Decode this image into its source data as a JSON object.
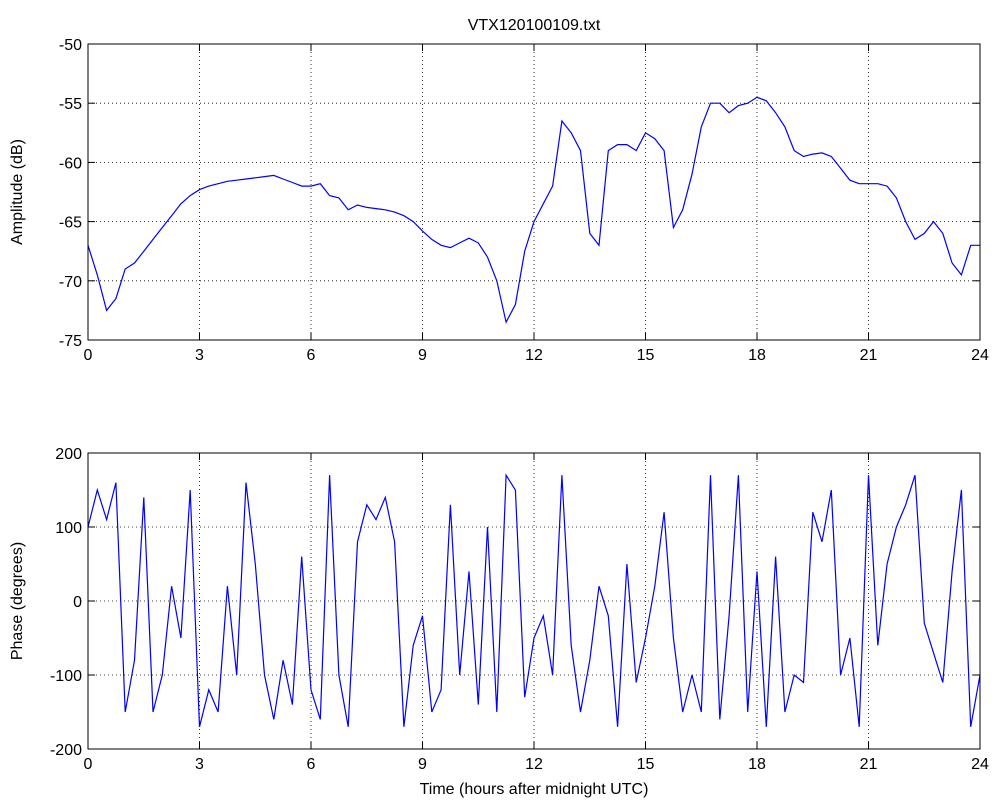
{
  "chart_data": [
    {
      "type": "line",
      "title": "VTX120100109.txt",
      "ylabel": "Amplitude (dB)",
      "color": "#0000ff",
      "grid": true,
      "xlim": [
        0,
        24
      ],
      "xticks": [
        0,
        3,
        6,
        9,
        12,
        15,
        18,
        21,
        24
      ],
      "ylim": [
        -75,
        -50
      ],
      "yticks": [
        -75,
        -70,
        -65,
        -60,
        -55,
        -50
      ],
      "x": [
        0,
        0.25,
        0.5,
        0.75,
        1,
        1.25,
        1.5,
        1.75,
        2,
        2.25,
        2.5,
        2.75,
        3,
        3.25,
        3.5,
        3.75,
        4,
        4.25,
        4.5,
        4.75,
        5,
        5.25,
        5.5,
        5.75,
        6,
        6.25,
        6.5,
        6.75,
        7,
        7.25,
        7.5,
        7.75,
        8,
        8.25,
        8.5,
        8.75,
        9,
        9.25,
        9.5,
        9.75,
        10,
        10.25,
        10.5,
        10.75,
        11,
        11.25,
        11.5,
        11.75,
        12,
        12.25,
        12.5,
        12.75,
        13,
        13.25,
        13.5,
        13.75,
        14,
        14.25,
        14.5,
        14.75,
        15,
        15.25,
        15.5,
        15.75,
        16,
        16.25,
        16.5,
        16.75,
        17,
        17.25,
        17.5,
        17.75,
        18,
        18.25,
        18.5,
        18.75,
        19,
        19.25,
        19.5,
        19.75,
        20,
        20.25,
        20.5,
        20.75,
        21,
        21.25,
        21.5,
        21.75,
        22,
        22.25,
        22.5,
        22.75,
        23,
        23.25,
        23.5,
        23.75,
        24
      ],
      "values": [
        -67,
        -69.5,
        -72.5,
        -71.5,
        -69,
        -68.5,
        -67.5,
        -66.5,
        -65.5,
        -64.5,
        -63.5,
        -62.8,
        -62.3,
        -62,
        -61.8,
        -61.6,
        -61.5,
        -61.4,
        -61.3,
        -61.2,
        -61.1,
        -61.4,
        -61.7,
        -62,
        -62,
        -61.8,
        -62.8,
        -63,
        -64,
        -63.6,
        -63.8,
        -63.9,
        -64,
        -64.2,
        -64.5,
        -65,
        -65.8,
        -66.5,
        -67,
        -67.2,
        -66.8,
        -66.4,
        -66.8,
        -68,
        -70,
        -73.5,
        -72,
        -67.5,
        -65,
        -63.5,
        -62,
        -56.5,
        -57.5,
        -59,
        -66,
        -67,
        -59,
        -58.5,
        -58.5,
        -59,
        -57.5,
        -58,
        -59,
        -65.5,
        -64,
        -61,
        -57,
        -55,
        -55,
        -55.8,
        -55.2,
        -55,
        -54.5,
        -54.8,
        -55.8,
        -57,
        -59,
        -59.5,
        -59.3,
        -59.2,
        -59.5,
        -60.5,
        -61.5,
        -61.8,
        -61.8,
        -61.8,
        -62,
        -63,
        -65,
        -66.5,
        -66,
        -65,
        -66,
        -68.5,
        -69.5,
        -67,
        -67
      ]
    },
    {
      "type": "line",
      "xlabel": "Time (hours after midnight UTC)",
      "ylabel": "Phase (degrees)",
      "color": "#0000ff",
      "grid": true,
      "xlim": [
        0,
        24
      ],
      "xticks": [
        0,
        3,
        6,
        9,
        12,
        15,
        18,
        21,
        24
      ],
      "ylim": [
        -200,
        200
      ],
      "yticks": [
        -200,
        -100,
        0,
        100,
        200
      ],
      "x": [
        0,
        0.25,
        0.5,
        0.75,
        1,
        1.25,
        1.5,
        1.75,
        2,
        2.25,
        2.5,
        2.75,
        3,
        3.25,
        3.5,
        3.75,
        4,
        4.25,
        4.5,
        4.75,
        5,
        5.25,
        5.5,
        5.75,
        6,
        6.25,
        6.5,
        6.75,
        7,
        7.25,
        7.5,
        7.75,
        8,
        8.25,
        8.5,
        8.75,
        9,
        9.25,
        9.5,
        9.75,
        10,
        10.25,
        10.5,
        10.75,
        11,
        11.25,
        11.5,
        11.75,
        12,
        12.25,
        12.5,
        12.75,
        13,
        13.25,
        13.5,
        13.75,
        14,
        14.25,
        14.5,
        14.75,
        15,
        15.25,
        15.5,
        15.75,
        16,
        16.25,
        16.5,
        16.75,
        17,
        17.25,
        17.5,
        17.75,
        18,
        18.25,
        18.5,
        18.75,
        19,
        19.25,
        19.5,
        19.75,
        20,
        20.25,
        20.5,
        20.75,
        21,
        21.25,
        21.5,
        21.75,
        22,
        22.25,
        22.5,
        22.75,
        23,
        23.25,
        23.5,
        23.75,
        24
      ],
      "values": [
        100,
        150,
        110,
        160,
        -150,
        -80,
        140,
        -150,
        -100,
        20,
        -50,
        150,
        -170,
        -120,
        -150,
        20,
        -100,
        160,
        50,
        -100,
        -160,
        -80,
        -140,
        60,
        -120,
        -160,
        170,
        -100,
        -170,
        80,
        130,
        110,
        140,
        80,
        -170,
        -60,
        -20,
        -150,
        -120,
        130,
        -100,
        40,
        -140,
        100,
        -150,
        170,
        150,
        -130,
        -50,
        -20,
        -100,
        170,
        -60,
        -150,
        -80,
        20,
        -20,
        -170,
        50,
        -110,
        -50,
        20,
        120,
        -50,
        -150,
        -100,
        -150,
        170,
        -160,
        -20,
        170,
        -150,
        40,
        -170,
        60,
        -150,
        -100,
        -110,
        120,
        80,
        150,
        -100,
        -50,
        -170,
        170,
        -60,
        50,
        100,
        130,
        170,
        -30,
        -70,
        -110,
        40,
        150,
        -170,
        -100
      ]
    }
  ]
}
